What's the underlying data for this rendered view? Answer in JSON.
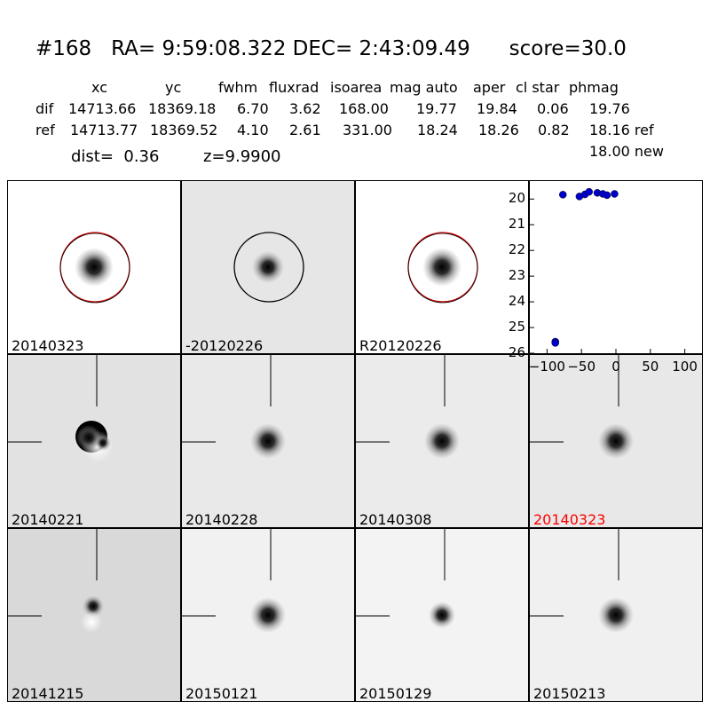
{
  "header": {
    "title": "#168   RA= 9:59:08.322 DEC= 2:43:09.49      score=30.0",
    "columns": [
      "xc",
      "yc",
      "fwhm",
      "fluxrad",
      "isoarea",
      "mag auto",
      "aper",
      "cl star",
      "phmag"
    ],
    "dif_row": {
      "label": "dif",
      "values": [
        "14713.66",
        "18369.18",
        "6.70",
        "3.62",
        "168.00",
        "19.77",
        "19.84",
        "0.06",
        "19.76"
      ]
    },
    "ref_row": {
      "label": "ref",
      "values": [
        "14713.77",
        "18369.52",
        "4.10",
        "2.61",
        "331.00",
        "18.24",
        "18.26",
        "0.82",
        "18.16 ref"
      ]
    },
    "new_mag": "18.00 new",
    "dist": "dist=  0.36",
    "z": "z=9.9900"
  },
  "panels": [
    {
      "label": "20140323",
      "label_color": "#000000",
      "bg": "#ffffff",
      "type": "circle-red"
    },
    {
      "label": "-20120226",
      "label_color": "#000000",
      "bg": "#e6e6e6",
      "type": "circle-black"
    },
    {
      "label": "R20120226",
      "label_color": "#000000",
      "bg": "#ffffff",
      "type": "circle-red"
    },
    {
      "label": "20140221",
      "label_color": "#000000",
      "bg": "#e2e2e2",
      "type": "dipole"
    },
    {
      "label": "20140228",
      "label_color": "#000000",
      "bg": "#e9e9e9",
      "type": "blob"
    },
    {
      "label": "20140308",
      "label_color": "#000000",
      "bg": "#ebebeb",
      "type": "blob"
    },
    {
      "label": "20140323",
      "label_color": "#ff0000",
      "bg": "#e8e8e8",
      "type": "blob"
    },
    {
      "label": "20141215",
      "label_color": "#000000",
      "bg": "#d9d9d9",
      "type": "dipole-small"
    },
    {
      "label": "20150121",
      "label_color": "#000000",
      "bg": "#f1f1f1",
      "type": "blob"
    },
    {
      "label": "20150129",
      "label_color": "#000000",
      "bg": "#f3f3f3",
      "type": "blob-small"
    },
    {
      "label": "20150213",
      "label_color": "#000000",
      "bg": "#f0f0f0",
      "type": "blob"
    }
  ],
  "chart_data": {
    "type": "scatter",
    "marker_color": "#0000cc",
    "xlim": [
      -125,
      125
    ],
    "ylim": [
      26,
      19.3
    ],
    "xticks": [
      -100,
      -50,
      0,
      50,
      100
    ],
    "yticks": [
      20,
      21,
      22,
      23,
      24,
      25,
      26
    ],
    "points": [
      {
        "x": -77,
        "y": 19.83
      },
      {
        "x": -53,
        "y": 19.9
      },
      {
        "x": -45,
        "y": 19.82
      },
      {
        "x": -39,
        "y": 19.72
      },
      {
        "x": -27,
        "y": 19.76
      },
      {
        "x": -19,
        "y": 19.8
      },
      {
        "x": -13,
        "y": 19.85
      },
      {
        "x": -2,
        "y": 19.8
      },
      {
        "x": -88,
        "y": 25.55
      },
      {
        "x": -88,
        "y": 25.6
      }
    ]
  }
}
